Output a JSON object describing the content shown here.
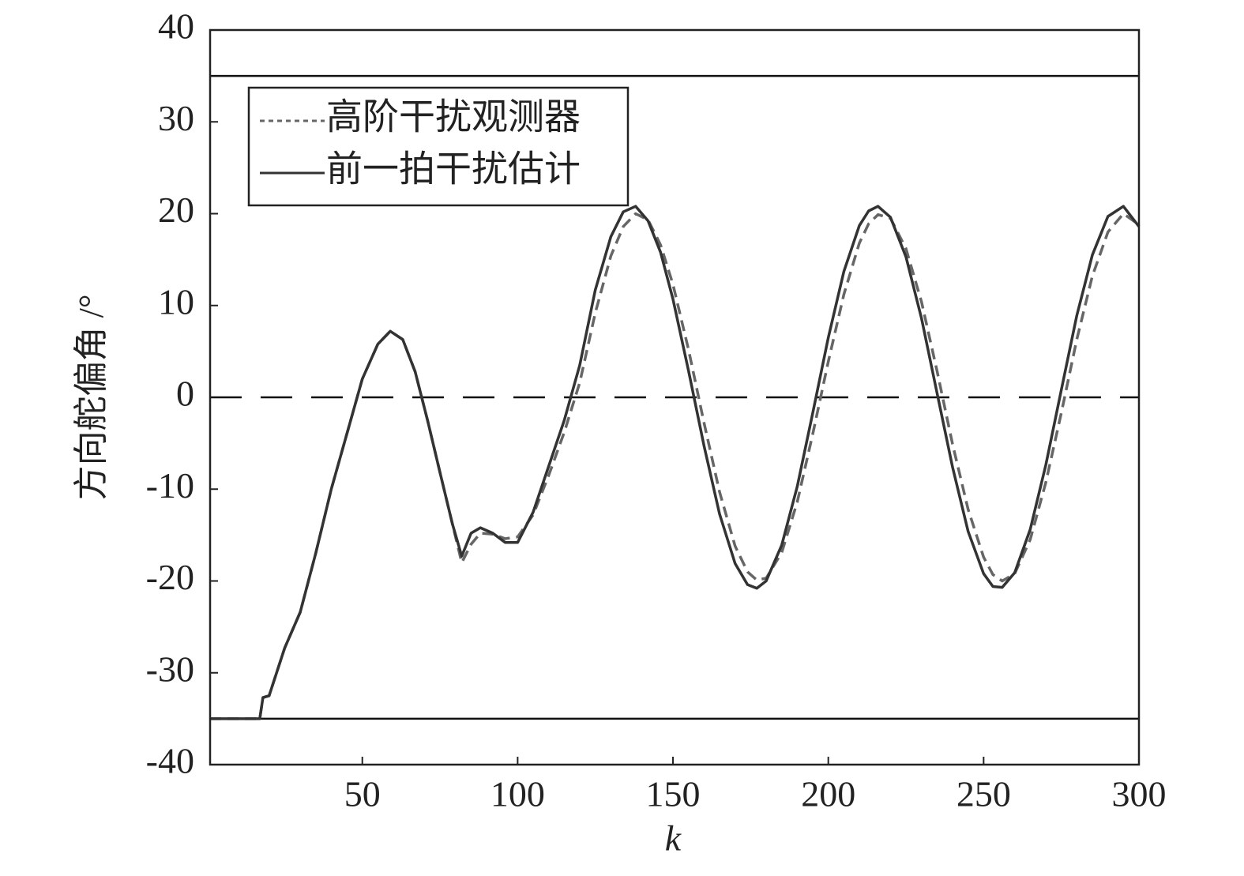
{
  "chart_data": {
    "type": "line",
    "xlabel": "k",
    "ylabel": "方向舵偏角 /°",
    "x": [
      1,
      16,
      17,
      18,
      20,
      25,
      30,
      35,
      40,
      45,
      50,
      55,
      59,
      63,
      67,
      71,
      75,
      79,
      82,
      85,
      88,
      92,
      96,
      100,
      105,
      110,
      115,
      120,
      125,
      130,
      134,
      138,
      142,
      146,
      150,
      155,
      160,
      165,
      170,
      174,
      177,
      180,
      185,
      190,
      195,
      200,
      205,
      210,
      213,
      216,
      220,
      225,
      230,
      235,
      240,
      245,
      250,
      253,
      256,
      260,
      265,
      270,
      275,
      280,
      285,
      290,
      295,
      300
    ],
    "series": [
      {
        "name": "高阶干扰观测器",
        "color": "#666666",
        "style": "dashed",
        "values": [
          -35,
          -35,
          -35,
          -32.7,
          -32.5,
          -27.3,
          -23.4,
          -17,
          -10,
          -4,
          2,
          5.8,
          7.2,
          6.3,
          2.8,
          -2.5,
          -8.2,
          -13.8,
          -18.0,
          -16.0,
          -14.8,
          -14.9,
          -15.4,
          -15.2,
          -12.8,
          -8.5,
          -3.8,
          1.6,
          9.2,
          15.4,
          18.6,
          20.0,
          19.3,
          16.6,
          12.3,
          5.2,
          -2.8,
          -10.3,
          -16.2,
          -19.0,
          -19.9,
          -19.7,
          -16.9,
          -11.4,
          -4.0,
          3.9,
          11.2,
          16.8,
          18.9,
          19.9,
          19.5,
          16.2,
          10.4,
          2.9,
          -5.1,
          -12.2,
          -17.4,
          -19.3,
          -20.0,
          -19.2,
          -15.5,
          -9.3,
          -1.7,
          6.3,
          13.2,
          18.0,
          20.0,
          18.8
        ]
      },
      {
        "name": "前一拍干扰估计",
        "color": "#333333",
        "style": "solid",
        "values": [
          -35,
          -35,
          -35,
          -32.7,
          -32.5,
          -27.3,
          -23.4,
          -17,
          -10,
          -4,
          2,
          5.8,
          7.2,
          6.3,
          2.8,
          -2.5,
          -8.2,
          -13.8,
          -17.3,
          -14.8,
          -14.2,
          -14.8,
          -15.8,
          -15.8,
          -12.5,
          -7.5,
          -2.5,
          3.5,
          11.7,
          17.5,
          20.2,
          20.8,
          19.2,
          15.8,
          10.7,
          2.9,
          -5.3,
          -12.7,
          -18.1,
          -20.4,
          -20.8,
          -20.0,
          -16.1,
          -9.7,
          -1.7,
          6.5,
          13.7,
          18.7,
          20.3,
          20.8,
          19.6,
          15.3,
          8.6,
          0.5,
          -7.6,
          -14.6,
          -19.2,
          -20.6,
          -20.7,
          -19.1,
          -14.4,
          -7.4,
          0.8,
          8.9,
          15.5,
          19.7,
          20.8,
          18.6
        ]
      }
    ],
    "reference_lines": [
      35,
      -35,
      0
    ],
    "reference_line_styles": [
      "solid",
      "solid",
      "dashed"
    ],
    "xlim": [
      1,
      300
    ],
    "xticks": [
      50,
      100,
      150,
      200,
      250,
      300
    ],
    "ylim": [
      -40,
      40
    ],
    "yticks": [
      -40,
      -30,
      -20,
      -10,
      0,
      10,
      20,
      30,
      40
    ],
    "legend": "upper-left"
  }
}
